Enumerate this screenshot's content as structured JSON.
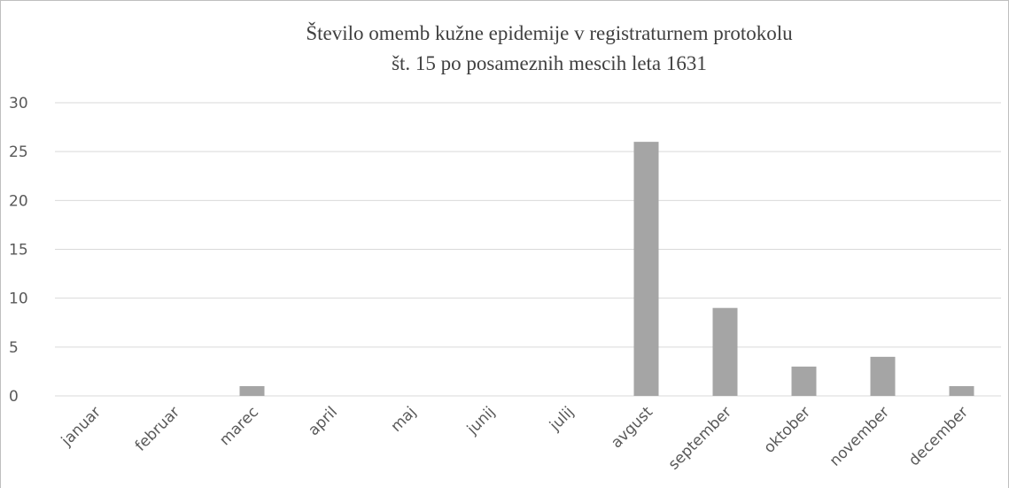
{
  "chart_data": {
    "type": "bar",
    "title": [
      "Število omemb kužne epidemije v registraturnem protokolu",
      "št. 15 po posameznih mescih leta 1631"
    ],
    "categories": [
      "januar",
      "februar",
      "marec",
      "april",
      "maj",
      "junij",
      "julij",
      "avgust",
      "september",
      "oktober",
      "november",
      "december"
    ],
    "values": [
      0,
      0,
      1,
      0,
      0,
      0,
      0,
      26,
      9,
      3,
      4,
      1
    ],
    "color": "#a5a5a5",
    "ylim": [
      0,
      30
    ],
    "yticks": [
      0,
      5,
      10,
      15,
      20,
      25,
      30
    ],
    "grid": true
  }
}
